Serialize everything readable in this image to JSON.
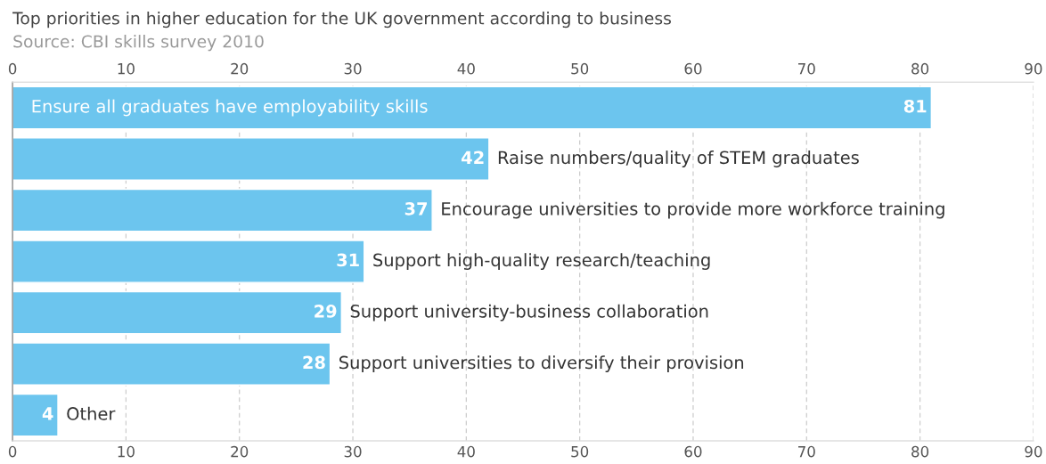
{
  "chart_data": {
    "type": "bar",
    "orientation": "horizontal",
    "title": "Top priorities in higher education for the UK government according to business",
    "subtitle": "Source: CBI skills survey 2010",
    "categories": [
      "Ensure all graduates have employability skills",
      "Raise numbers/quality of STEM graduates",
      "Encourage universities to provide more workforce training",
      "Support high-quality research/teaching",
      "Support university-business collaboration",
      "Support universities to diversify their provision",
      "Other"
    ],
    "values": [
      81,
      42,
      37,
      31,
      29,
      28,
      4
    ],
    "color": "#6cc5ee",
    "xlim": [
      0,
      90
    ],
    "xticks": [
      0,
      10,
      20,
      30,
      40,
      50,
      60,
      70,
      80,
      90
    ],
    "x2lim": [
      0,
      90
    ],
    "x2ticks": [
      0,
      10,
      20,
      30,
      40,
      50,
      60,
      70,
      80,
      90
    ],
    "grid": "x",
    "data_labels": true
  }
}
